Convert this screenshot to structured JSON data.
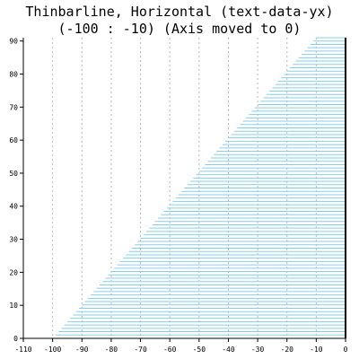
{
  "chart_data": {
    "type": "bar",
    "orientation": "horizontal",
    "title_lines": [
      "Thinbarline, Horizontal (text-data-yx)",
      "(-100 : -10) (Axis moved to 0)"
    ],
    "xlabel": "",
    "ylabel": "",
    "xlim": [
      -110,
      0
    ],
    "ylim": [
      0,
      91
    ],
    "xticks": [
      -110,
      -100,
      -90,
      -80,
      -70,
      -60,
      -50,
      -40,
      -30,
      -20,
      -10,
      0
    ],
    "yticks": [
      0,
      10,
      20,
      30,
      40,
      50,
      60,
      70,
      80,
      90
    ],
    "vertical_grid": true,
    "horizontal_grid": false,
    "baseline": 0,
    "bar_color": "#87ceeb",
    "series": [
      {
        "x_start": -100,
        "x_end": -10,
        "y_start": 0,
        "y_end": 91,
        "count": 91
      }
    ]
  }
}
